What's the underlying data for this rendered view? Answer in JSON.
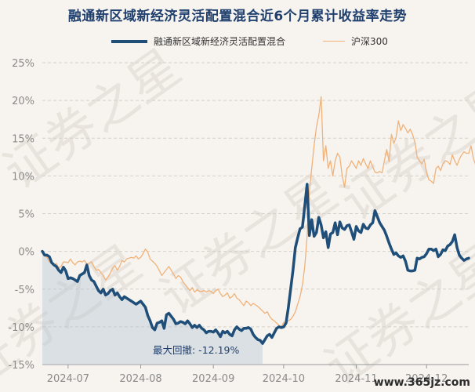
{
  "chart_data": {
    "type": "line",
    "title": "融通新区域新经济灵活配置混合近6个月累计收益率走势",
    "xlabel": "",
    "ylabel": "",
    "x_tick_labels": [
      "2024-07",
      "2024-08",
      "2024-09",
      "2024-10",
      "2024-11",
      "2024-12"
    ],
    "y_tick_labels": [
      "25%",
      "20%",
      "15%",
      "10%",
      "5%",
      "0%",
      "-5%",
      "-10%",
      "-15%"
    ],
    "ylim": [
      -15,
      25
    ],
    "grid": "horizontal dashed",
    "legend_position": "top-center",
    "annotation": "最大回撤: -12.19%",
    "x_start": "2024-06-20",
    "x_step_days": 1,
    "series": [
      {
        "name": "融通新区域新经济灵活配置混合",
        "color": "#1f4e79",
        "values": [
          0,
          -0.5,
          -0.5,
          -0.7,
          -1.5,
          -1.8,
          -2.0,
          -2.5,
          -2.8,
          -2.1,
          -2.6,
          -3.6,
          -3.5,
          -3.6,
          -3.8,
          -4.0,
          -3.2,
          -3.0,
          -2.8,
          -1.8,
          -3.2,
          -3.8,
          -4.0,
          -4.6,
          -5.2,
          -5.5,
          -5.0,
          -5.8,
          -5.6,
          -5.2,
          -5.0,
          -5.8,
          -5.5,
          -6.0,
          -6.4,
          -6.0,
          -6.2,
          -6.4,
          -6.6,
          -6.8,
          -7.0,
          -6.8,
          -6.6,
          -7.0,
          -7.4,
          -8.5,
          -9.2,
          -10.1,
          -10.4,
          -9.5,
          -9.4,
          -9.2,
          -10.2,
          -8.4,
          -8.2,
          -8.6,
          -9.0,
          -9.6,
          -9.5,
          -9.3,
          -9.4,
          -9.6,
          -9.2,
          -9.6,
          -10.1,
          -9.8,
          -10.1,
          -9.8,
          -10.2,
          -10.4,
          -10.8,
          -10.6,
          -10.6,
          -10.7,
          -10.4,
          -10.8,
          -11.3,
          -10.6,
          -10.8,
          -10.6,
          -11.0,
          -11.2,
          -10.4,
          -10.0,
          -10.3,
          -10.5,
          -10.2,
          -10.2,
          -10.1,
          -10.3,
          -11.0,
          -11.4,
          -11.7,
          -11.8,
          -12.2,
          -11.7,
          -11.2,
          -11.0,
          -11.4,
          -10.8,
          -10.2,
          -10.0,
          -10.1,
          -10.0,
          -9.5,
          -7.5,
          -5.0,
          -2.5,
          0.5,
          1.8,
          3.0,
          3.2,
          6.0,
          8.9,
          2.1,
          4.2,
          2.0,
          2.5,
          4.5,
          3.5,
          1.8,
          2.6,
          0.5,
          2.3,
          2.5,
          3.8,
          2.2,
          3.9,
          3.1,
          2.9,
          3.4,
          3.5,
          2.6,
          1.6,
          3.3,
          2.7,
          2.5,
          3.6,
          3.1,
          3.0,
          3.5,
          3.8,
          5.4,
          4.6,
          3.8,
          3.3,
          2.8,
          2.0,
          1.1,
          0.3,
          -0.4,
          -0.2,
          -0.6,
          -0.8,
          -0.6,
          -1.3,
          -2.5,
          -2.6,
          -2.6,
          -2.5,
          -0.9,
          -1.0,
          -0.8,
          -0.7,
          -0.3,
          0.3,
          0.3,
          0.1,
          0.3,
          -0.7,
          -0.4,
          0.2,
          0.1,
          0.7,
          0.9,
          1.3,
          2.2,
          0.5,
          -0.5,
          -0.9,
          -1.2,
          -1.0,
          -0.9
        ]
      },
      {
        "name": "沪深300",
        "color": "#f0b27a",
        "values": [
          0,
          -0.6,
          -0.8,
          -1.4,
          -1.6,
          -1.8,
          -1.6,
          -2.2,
          -2.0,
          -1.4,
          -1.4,
          -1.5,
          -1.0,
          -1.5,
          -1.8,
          -1.4,
          -1.3,
          -1.4,
          -1.2,
          -1.7,
          -1.6,
          -1.4,
          -2.0,
          -2.5,
          -2.4,
          -2.8,
          -3.2,
          -3.8,
          -3.4,
          -2.9,
          -2.2,
          -1.9,
          -2.5,
          -2.0,
          -1.2,
          -1.4,
          -1.0,
          -0.9,
          -0.8,
          -0.9,
          -0.6,
          -1.0,
          -0.8,
          -0.3,
          0.3,
          -0.1,
          -1.0,
          -1.3,
          -1.6,
          -2.0,
          -2.6,
          -3.2,
          -2.8,
          -2.4,
          -2.0,
          -2.5,
          -3.0,
          -3.6,
          -3.2,
          -3.4,
          -4.0,
          -4.4,
          -4.8,
          -5.2,
          -4.8,
          -5.4,
          -5.1,
          -5.3,
          -5.3,
          -5.2,
          -5.4,
          -5.2,
          -5.3,
          -5.6,
          -5.2,
          -5.0,
          -5.6,
          -6.0,
          -5.8,
          -5.5,
          -6.2,
          -6.0,
          -5.6,
          -6.2,
          -6.4,
          -6.8,
          -7.2,
          -6.6,
          -6.8,
          -7.2,
          -6.9,
          -7.1,
          -7.3,
          -7.6,
          -7.9,
          -8.2,
          -8.0,
          -8.6,
          -9.0,
          -9.2,
          -9.5,
          -9.8,
          -10.0,
          -9.4,
          -9.5,
          -9.2,
          -9.0,
          -8.6,
          -8.0,
          -7.0,
          -6.0,
          -4.5,
          -2.0,
          2.0,
          8.0,
          11.0,
          14.0,
          16.5,
          18.0,
          20.5,
          12.0,
          14.0,
          11.0,
          12.0,
          10.0,
          12.0,
          13.0,
          12.5,
          10.0,
          8.5,
          11.0,
          11.3,
          12.0,
          11.5,
          11.0,
          12.0,
          11.4,
          12.3,
          11.6,
          11.0,
          12.0,
          11.2,
          10.5,
          10.4,
          10.6,
          10.4,
          12.0,
          13.5,
          11.9,
          15.5,
          14.3,
          15.1,
          17.3,
          16.0,
          16.8,
          16.3,
          15.7,
          16.2,
          15.5,
          14.5,
          12.5,
          12.0,
          11.6,
          12.2,
          10.4,
          9.5,
          9.3,
          9.0,
          11.0,
          11.3,
          10.7,
          11.6,
          12.0,
          11.9,
          11.5,
          12.8,
          12.0,
          11.4,
          12.2,
          12.8,
          13.2,
          13.0,
          13.0,
          14.0,
          12.3,
          11.4,
          11.0,
          11.3,
          11.8,
          11.8
        ]
      }
    ]
  },
  "watermark_text": "证券之星",
  "site_watermark": "www.365jz.com"
}
